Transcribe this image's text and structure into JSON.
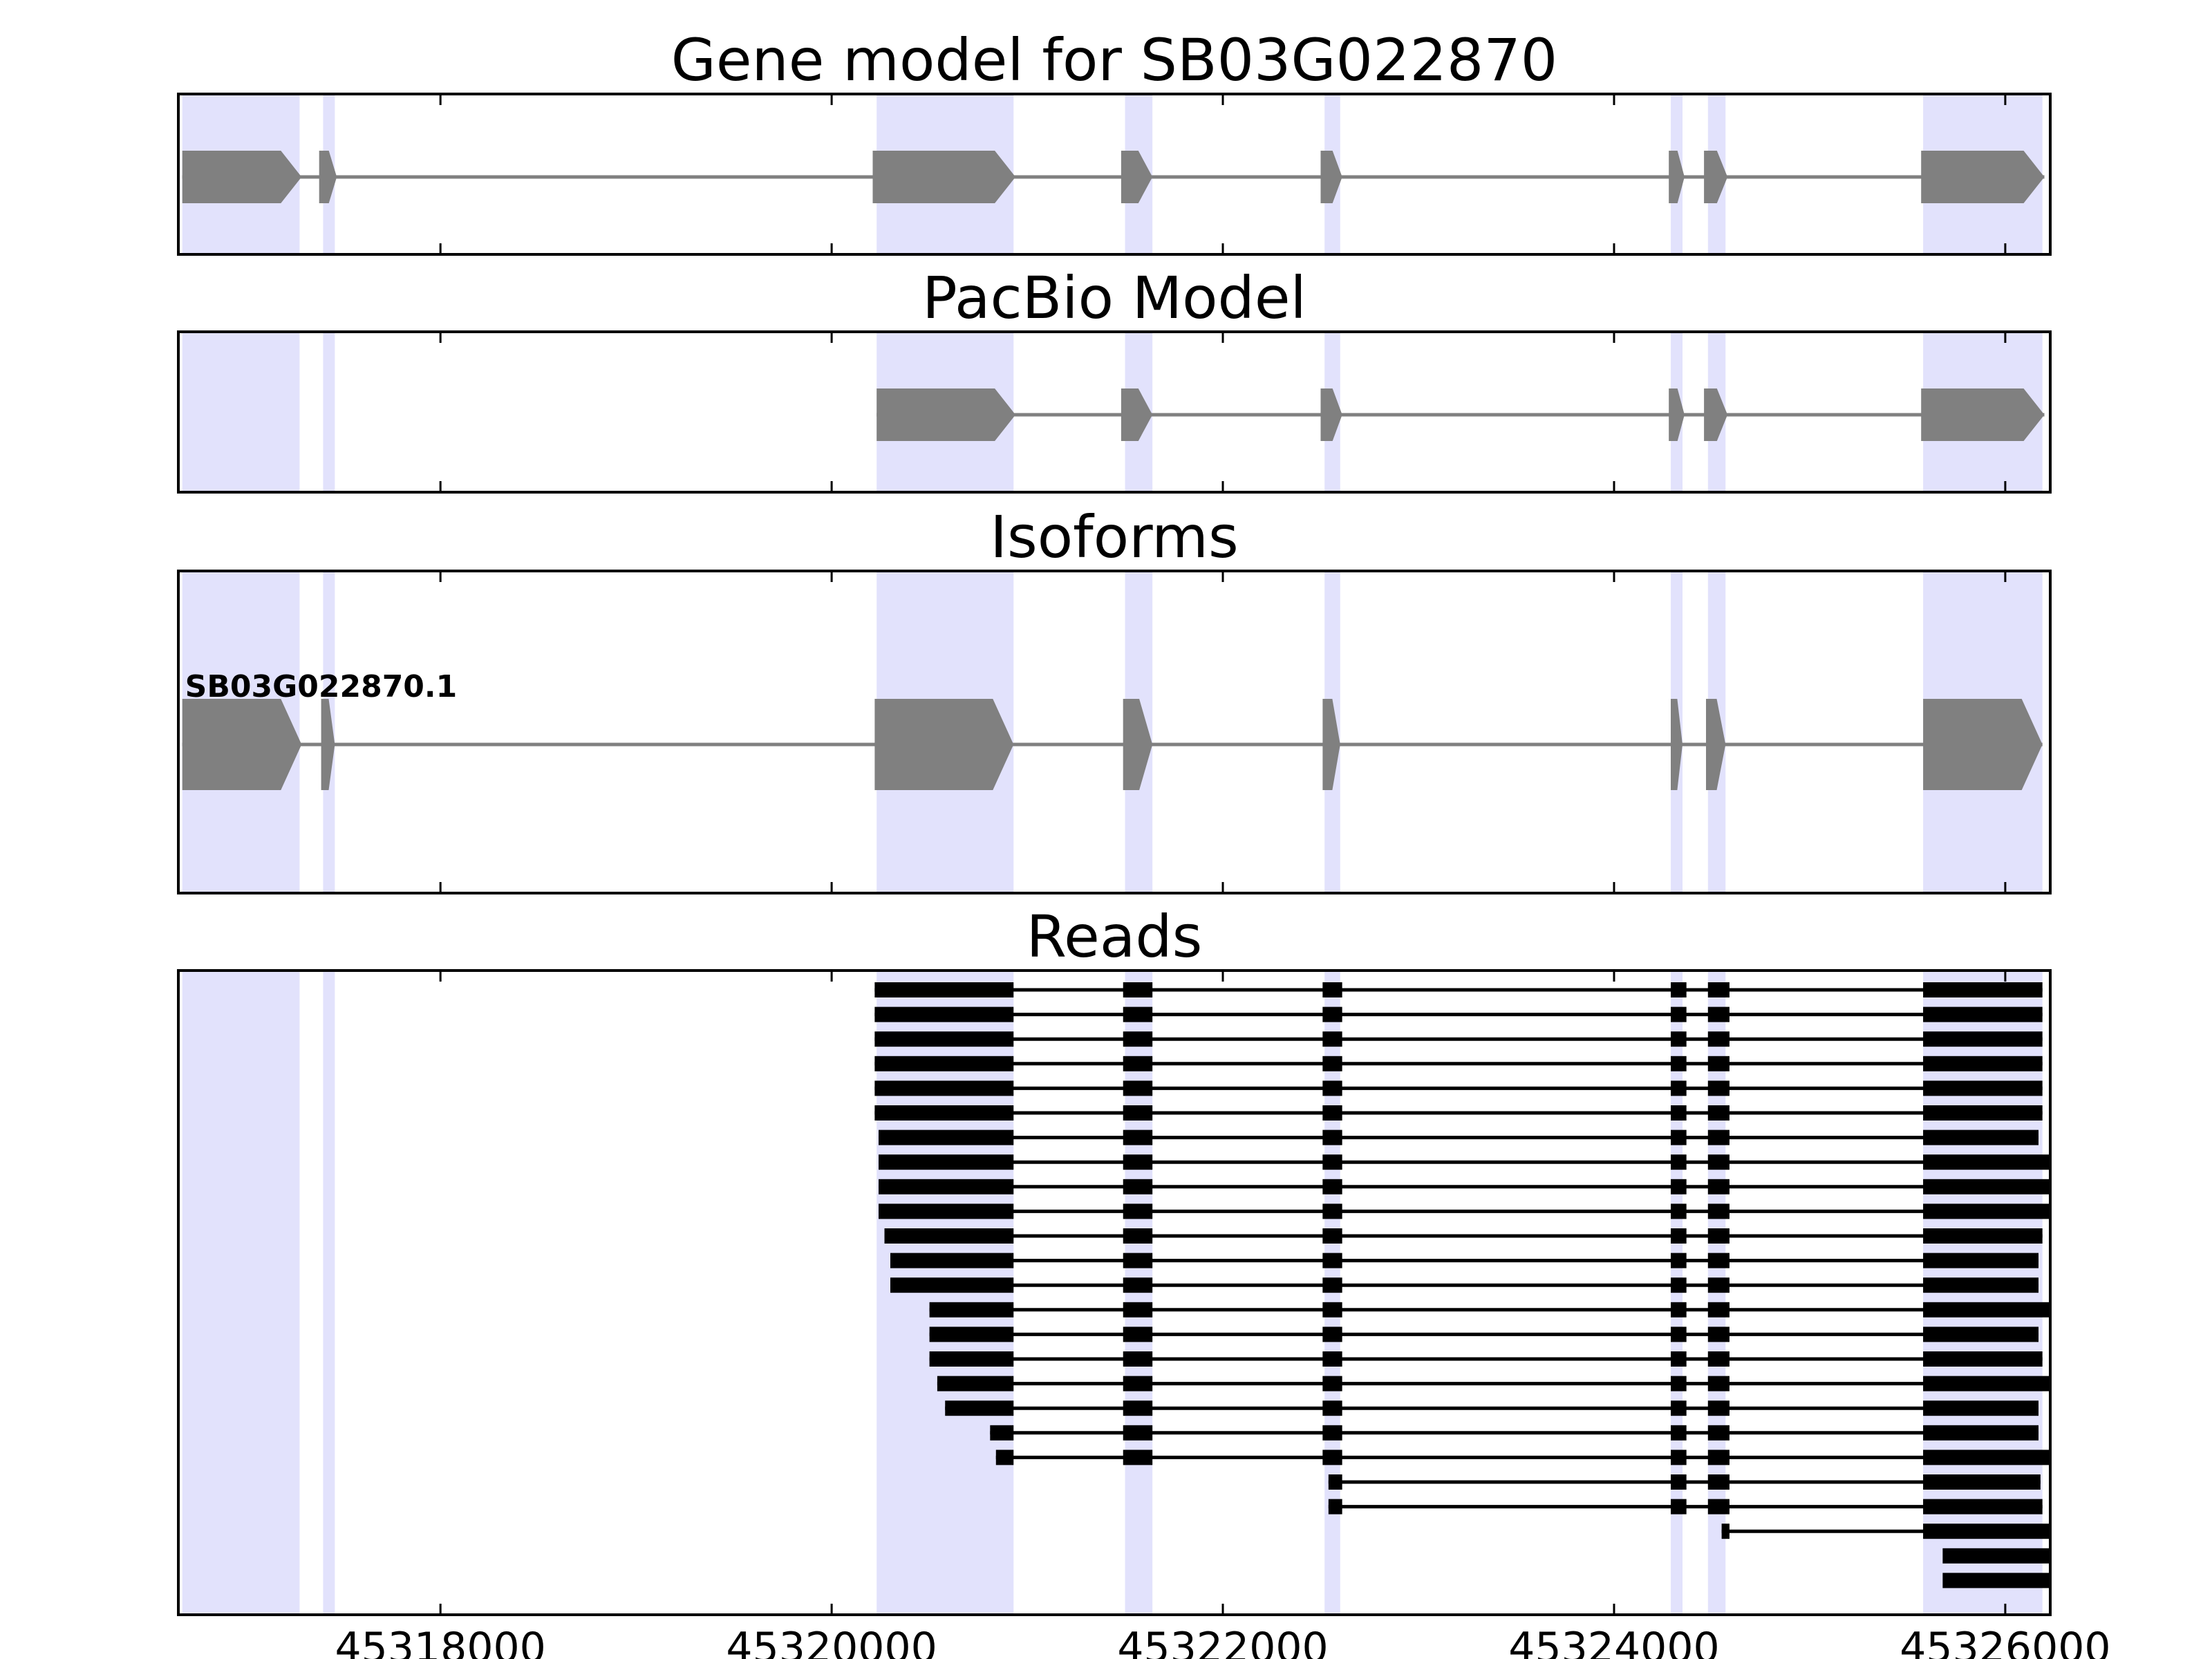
{
  "chart_data": {
    "type": "gene-track",
    "axis": {
      "xlim": [
        45316660,
        45326230
      ],
      "ticks": [
        45318000,
        45320000,
        45322000,
        45324000,
        45326000
      ],
      "tick_labels": [
        "45318000",
        "45320000",
        "45322000",
        "45324000",
        "45326000"
      ]
    },
    "colors": {
      "highlight": "#e2e2fc",
      "gene": "#808080",
      "read": "#000000",
      "frame": "#000000"
    },
    "highlight_regions": [
      [
        45316680,
        45317280
      ],
      [
        45317400,
        45317460
      ],
      [
        45320230,
        45320930
      ],
      [
        45321500,
        45321640
      ],
      [
        45322520,
        45322600
      ],
      [
        45324290,
        45324350
      ],
      [
        45324480,
        45324570
      ],
      [
        45325580,
        45326190
      ]
    ],
    "panels": [
      {
        "title": "Gene model for SB03G022870",
        "models": [
          {
            "label": "",
            "exons": [
              [
                45316680,
                45317290
              ],
              [
                45317380,
                45317470
              ],
              [
                45320210,
                45320940
              ],
              [
                45321480,
                45321640
              ],
              [
                45322500,
                45322610
              ],
              [
                45324280,
                45324360
              ],
              [
                45324460,
                45324580
              ],
              [
                45325570,
                45326200
              ]
            ]
          }
        ]
      },
      {
        "title": "PacBio Model",
        "models": [
          {
            "label": "",
            "exons": [
              [
                45320230,
                45320940
              ],
              [
                45321480,
                45321640
              ],
              [
                45322500,
                45322610
              ],
              [
                45324280,
                45324360
              ],
              [
                45324460,
                45324580
              ],
              [
                45325570,
                45326200
              ]
            ]
          }
        ]
      },
      {
        "title": "Isoforms",
        "models": [
          {
            "label": "SB03G022870.1",
            "exons": [
              [
                45316680,
                45317290
              ],
              [
                45317390,
                45317460
              ],
              [
                45320220,
                45320930
              ],
              [
                45321490,
                45321640
              ],
              [
                45322510,
                45322600
              ],
              [
                45324290,
                45324350
              ],
              [
                45324470,
                45324570
              ],
              [
                45325580,
                45326190
              ]
            ]
          }
        ]
      },
      {
        "title": "Reads",
        "reads": [
          [
            [
              45320220,
              45320930
            ],
            [
              45321490,
              45321640
            ],
            [
              45322510,
              45322610
            ],
            [
              45324290,
              45324370
            ],
            [
              45324480,
              45324590
            ],
            [
              45325580,
              45326190
            ]
          ],
          [
            [
              45320220,
              45320930
            ],
            [
              45321490,
              45321640
            ],
            [
              45322510,
              45322610
            ],
            [
              45324290,
              45324370
            ],
            [
              45324480,
              45324590
            ],
            [
              45325580,
              45326190
            ]
          ],
          [
            [
              45320220,
              45320930
            ],
            [
              45321490,
              45321640
            ],
            [
              45322510,
              45322610
            ],
            [
              45324290,
              45324370
            ],
            [
              45324480,
              45324590
            ],
            [
              45325580,
              45326190
            ]
          ],
          [
            [
              45320220,
              45320930
            ],
            [
              45321490,
              45321640
            ],
            [
              45322510,
              45322610
            ],
            [
              45324290,
              45324370
            ],
            [
              45324480,
              45324590
            ],
            [
              45325580,
              45326190
            ]
          ],
          [
            [
              45320220,
              45320930
            ],
            [
              45321490,
              45321640
            ],
            [
              45322510,
              45322610
            ],
            [
              45324290,
              45324370
            ],
            [
              45324480,
              45324590
            ],
            [
              45325580,
              45326190
            ]
          ],
          [
            [
              45320220,
              45320930
            ],
            [
              45321490,
              45321640
            ],
            [
              45322510,
              45322610
            ],
            [
              45324290,
              45324370
            ],
            [
              45324480,
              45324590
            ],
            [
              45325580,
              45326190
            ]
          ],
          [
            [
              45320240,
              45320930
            ],
            [
              45321490,
              45321640
            ],
            [
              45322510,
              45322610
            ],
            [
              45324290,
              45324370
            ],
            [
              45324480,
              45324590
            ],
            [
              45325580,
              45326170
            ]
          ],
          [
            [
              45320240,
              45320930
            ],
            [
              45321490,
              45321640
            ],
            [
              45322510,
              45322610
            ],
            [
              45324290,
              45324370
            ],
            [
              45324480,
              45324590
            ],
            [
              45325580,
              45326230
            ]
          ],
          [
            [
              45320240,
              45320930
            ],
            [
              45321490,
              45321640
            ],
            [
              45322510,
              45322610
            ],
            [
              45324290,
              45324370
            ],
            [
              45324480,
              45324590
            ],
            [
              45325580,
              45326230
            ]
          ],
          [
            [
              45320240,
              45320930
            ],
            [
              45321490,
              45321640
            ],
            [
              45322510,
              45322610
            ],
            [
              45324290,
              45324370
            ],
            [
              45324480,
              45324590
            ],
            [
              45325580,
              45326230
            ]
          ],
          [
            [
              45320270,
              45320930
            ],
            [
              45321490,
              45321640
            ],
            [
              45322510,
              45322610
            ],
            [
              45324290,
              45324370
            ],
            [
              45324480,
              45324590
            ],
            [
              45325580,
              45326190
            ]
          ],
          [
            [
              45320300,
              45320930
            ],
            [
              45321490,
              45321640
            ],
            [
              45322510,
              45322610
            ],
            [
              45324290,
              45324370
            ],
            [
              45324480,
              45324590
            ],
            [
              45325580,
              45326170
            ]
          ],
          [
            [
              45320300,
              45320930
            ],
            [
              45321490,
              45321640
            ],
            [
              45322510,
              45322610
            ],
            [
              45324290,
              45324370
            ],
            [
              45324480,
              45324590
            ],
            [
              45325580,
              45326170
            ]
          ],
          [
            [
              45320500,
              45320930
            ],
            [
              45321490,
              45321640
            ],
            [
              45322510,
              45322610
            ],
            [
              45324290,
              45324370
            ],
            [
              45324480,
              45324590
            ],
            [
              45325580,
              45326230
            ]
          ],
          [
            [
              45320500,
              45320930
            ],
            [
              45321490,
              45321640
            ],
            [
              45322510,
              45322610
            ],
            [
              45324290,
              45324370
            ],
            [
              45324480,
              45324590
            ],
            [
              45325580,
              45326170
            ]
          ],
          [
            [
              45320500,
              45320930
            ],
            [
              45321490,
              45321640
            ],
            [
              45322510,
              45322610
            ],
            [
              45324290,
              45324370
            ],
            [
              45324480,
              45324590
            ],
            [
              45325580,
              45326190
            ]
          ],
          [
            [
              45320540,
              45320930
            ],
            [
              45321490,
              45321640
            ],
            [
              45322510,
              45322610
            ],
            [
              45324290,
              45324370
            ],
            [
              45324480,
              45324590
            ],
            [
              45325580,
              45326230
            ]
          ],
          [
            [
              45320580,
              45320930
            ],
            [
              45321490,
              45321640
            ],
            [
              45322510,
              45322610
            ],
            [
              45324290,
              45324370
            ],
            [
              45324480,
              45324590
            ],
            [
              45325580,
              45326170
            ]
          ],
          [
            [
              45320810,
              45320930
            ],
            [
              45321490,
              45321640
            ],
            [
              45322510,
              45322610
            ],
            [
              45324290,
              45324370
            ],
            [
              45324480,
              45324590
            ],
            [
              45325580,
              45326170
            ]
          ],
          [
            [
              45320840,
              45320930
            ],
            [
              45321490,
              45321640
            ],
            [
              45322510,
              45322610
            ],
            [
              45324290,
              45324370
            ],
            [
              45324480,
              45324590
            ],
            [
              45325580,
              45326230
            ]
          ],
          [
            [
              45322540,
              45322610
            ],
            [
              45324290,
              45324370
            ],
            [
              45324480,
              45324590
            ],
            [
              45325580,
              45326180
            ]
          ],
          [
            [
              45322540,
              45322610
            ],
            [
              45324290,
              45324370
            ],
            [
              45324480,
              45324590
            ],
            [
              45325580,
              45326190
            ]
          ],
          [
            [
              45324550,
              45324590
            ],
            [
              45325580,
              45326230
            ]
          ],
          [
            [
              45325680,
              45326230
            ]
          ],
          [
            [
              45325680,
              45326230
            ]
          ]
        ]
      }
    ]
  }
}
